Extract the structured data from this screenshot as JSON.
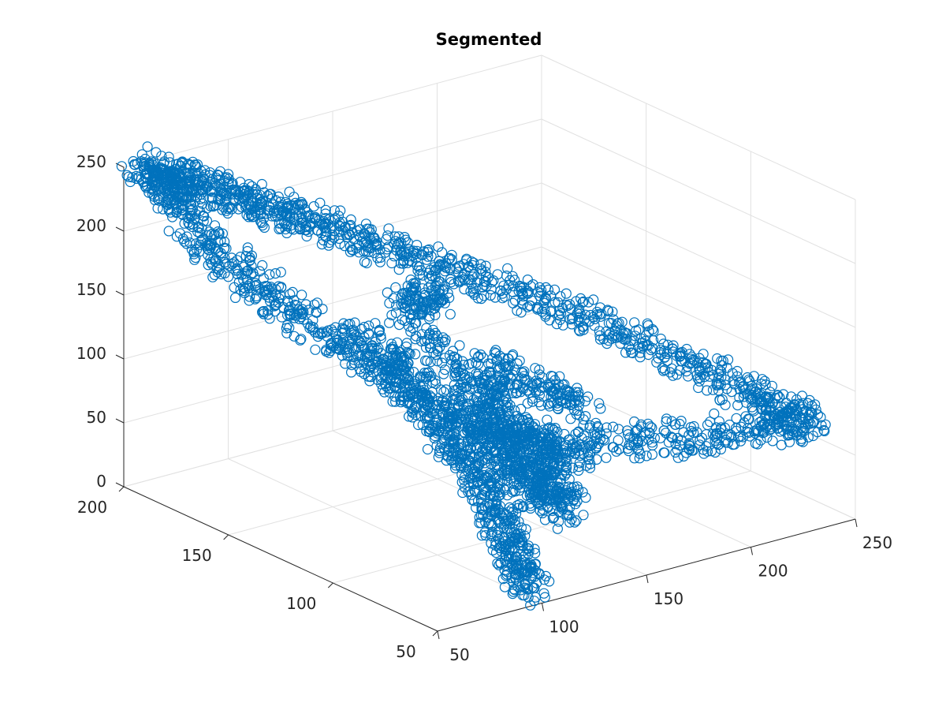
{
  "chart_data": {
    "type": "scatter",
    "projection": "3d",
    "title": "Segmented",
    "xlabel": "",
    "ylabel": "",
    "zlabel": "",
    "xlim": [
      50,
      250
    ],
    "ylim": [
      50,
      200
    ],
    "zlim": [
      0,
      250
    ],
    "x_ticks": [
      "50",
      "100",
      "150",
      "200",
      "250"
    ],
    "y_ticks": [
      "50",
      "100",
      "150",
      "200"
    ],
    "z_ticks": [
      "0",
      "50",
      "100",
      "150",
      "200",
      "250"
    ],
    "grid": true,
    "box": false,
    "marker": "circle-open",
    "marker_color": "#0072bd",
    "series": [
      {
        "values": [
          {
            "x": 60,
            "y": 195,
            "z": 245
          },
          {
            "x": 62,
            "y": 192,
            "z": 238
          },
          {
            "x": 65,
            "y": 190,
            "z": 242
          },
          {
            "x": 58,
            "y": 196,
            "z": 248
          },
          {
            "x": 64,
            "y": 193,
            "z": 232
          },
          {
            "x": 70,
            "y": 188,
            "z": 240
          },
          {
            "x": 75,
            "y": 185,
            "z": 236
          },
          {
            "x": 80,
            "y": 182,
            "z": 230
          },
          {
            "x": 86,
            "y": 179,
            "z": 226
          },
          {
            "x": 92,
            "y": 176,
            "z": 221
          },
          {
            "x": 98,
            "y": 172,
            "z": 215
          },
          {
            "x": 104,
            "y": 169,
            "z": 210
          },
          {
            "x": 110,
            "y": 165,
            "z": 205
          },
          {
            "x": 118,
            "y": 160,
            "z": 198
          },
          {
            "x": 126,
            "y": 155,
            "z": 190
          },
          {
            "x": 135,
            "y": 150,
            "z": 182
          },
          {
            "x": 145,
            "y": 144,
            "z": 173
          },
          {
            "x": 155,
            "y": 138,
            "z": 165
          },
          {
            "x": 165,
            "y": 132,
            "z": 155
          },
          {
            "x": 176,
            "y": 125,
            "z": 145
          },
          {
            "x": 186,
            "y": 118,
            "z": 135
          },
          {
            "x": 196,
            "y": 111,
            "z": 125
          },
          {
            "x": 205,
            "y": 104,
            "z": 115
          },
          {
            "x": 214,
            "y": 97,
            "z": 104
          },
          {
            "x": 222,
            "y": 90,
            "z": 95
          },
          {
            "x": 230,
            "y": 83,
            "z": 85
          },
          {
            "x": 236,
            "y": 77,
            "z": 77
          },
          {
            "x": 241,
            "y": 72,
            "z": 70
          },
          {
            "x": 244,
            "y": 69,
            "z": 66
          },
          {
            "x": 240,
            "y": 74,
            "z": 60
          },
          {
            "x": 233,
            "y": 80,
            "z": 55
          },
          {
            "x": 222,
            "y": 88,
            "z": 50
          },
          {
            "x": 210,
            "y": 95,
            "z": 47
          },
          {
            "x": 198,
            "y": 102,
            "z": 45
          },
          {
            "x": 185,
            "y": 110,
            "z": 44
          },
          {
            "x": 172,
            "y": 118,
            "z": 45
          },
          {
            "x": 160,
            "y": 126,
            "z": 50
          },
          {
            "x": 150,
            "y": 133,
            "z": 58
          },
          {
            "x": 140,
            "y": 140,
            "z": 70
          },
          {
            "x": 130,
            "y": 146,
            "z": 85
          },
          {
            "x": 120,
            "y": 152,
            "z": 100
          },
          {
            "x": 110,
            "y": 158,
            "z": 118
          },
          {
            "x": 100,
            "y": 164,
            "z": 136
          },
          {
            "x": 92,
            "y": 168,
            "z": 150
          },
          {
            "x": 85,
            "y": 172,
            "z": 165
          },
          {
            "x": 78,
            "y": 176,
            "z": 180
          },
          {
            "x": 72,
            "y": 180,
            "z": 195
          },
          {
            "x": 67,
            "y": 184,
            "z": 210
          },
          {
            "x": 63,
            "y": 188,
            "z": 225
          },
          {
            "x": 95,
            "y": 130,
            "z": 150
          },
          {
            "x": 98,
            "y": 125,
            "z": 140
          },
          {
            "x": 100,
            "y": 120,
            "z": 130
          },
          {
            "x": 102,
            "y": 115,
            "z": 120
          },
          {
            "x": 104,
            "y": 110,
            "z": 110
          },
          {
            "x": 105,
            "y": 105,
            "z": 100
          },
          {
            "x": 106,
            "y": 100,
            "z": 90
          },
          {
            "x": 107,
            "y": 95,
            "z": 80
          },
          {
            "x": 108,
            "y": 90,
            "z": 70
          },
          {
            "x": 108,
            "y": 85,
            "z": 60
          },
          {
            "x": 108,
            "y": 80,
            "z": 50
          },
          {
            "x": 107,
            "y": 75,
            "z": 40
          },
          {
            "x": 106,
            "y": 70,
            "z": 30
          },
          {
            "x": 104,
            "y": 66,
            "z": 22
          },
          {
            "x": 102,
            "y": 62,
            "z": 14
          },
          {
            "x": 100,
            "y": 58,
            "z": 8
          },
          {
            "x": 115,
            "y": 128,
            "z": 165
          },
          {
            "x": 120,
            "y": 130,
            "z": 172
          },
          {
            "x": 125,
            "y": 128,
            "z": 168
          },
          {
            "x": 118,
            "y": 118,
            "z": 140
          },
          {
            "x": 122,
            "y": 112,
            "z": 125
          },
          {
            "x": 126,
            "y": 106,
            "z": 110
          },
          {
            "x": 130,
            "y": 100,
            "z": 95
          },
          {
            "x": 132,
            "y": 94,
            "z": 80
          },
          {
            "x": 134,
            "y": 88,
            "z": 65
          },
          {
            "x": 135,
            "y": 82,
            "z": 50
          },
          {
            "x": 136,
            "y": 76,
            "z": 38
          },
          {
            "x": 112,
            "y": 95,
            "z": 95
          },
          {
            "x": 116,
            "y": 92,
            "z": 85
          },
          {
            "x": 120,
            "y": 88,
            "z": 75
          },
          {
            "x": 124,
            "y": 84,
            "z": 62
          },
          {
            "x": 128,
            "y": 80,
            "z": 48
          },
          {
            "x": 150,
            "y": 120,
            "z": 110
          },
          {
            "x": 158,
            "y": 115,
            "z": 100
          },
          {
            "x": 165,
            "y": 110,
            "z": 92
          },
          {
            "x": 172,
            "y": 106,
            "z": 85
          },
          {
            "x": 145,
            "y": 118,
            "z": 95
          },
          {
            "x": 140,
            "y": 112,
            "z": 80
          },
          {
            "x": 148,
            "y": 104,
            "z": 70
          },
          {
            "x": 155,
            "y": 100,
            "z": 62
          },
          {
            "x": 162,
            "y": 96,
            "z": 55
          },
          {
            "x": 138,
            "y": 98,
            "z": 58
          },
          {
            "x": 142,
            "y": 92,
            "z": 48
          },
          {
            "x": 146,
            "y": 88,
            "z": 42
          }
        ]
      }
    ]
  }
}
